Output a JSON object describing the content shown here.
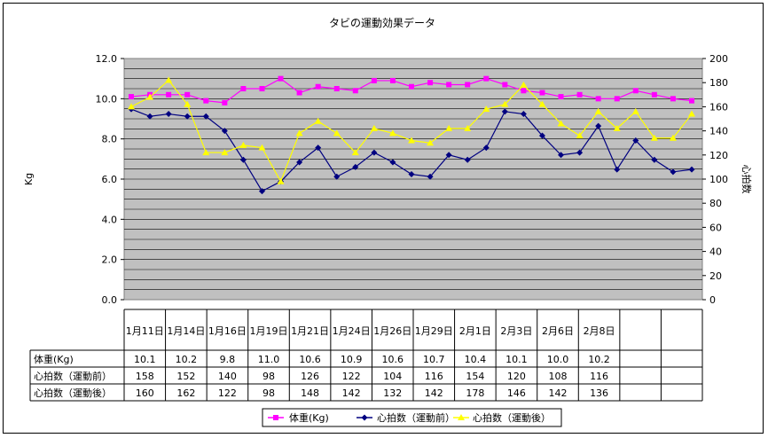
{
  "chart_data": {
    "type": "line",
    "title": "タビの運動効果データ",
    "ylabel": "Kg",
    "y2label": "心拍数",
    "ylim": [
      0,
      12
    ],
    "y2lim": [
      0,
      200
    ],
    "yticks": [
      "0.0",
      "2.0",
      "4.0",
      "6.0",
      "8.0",
      "10.0",
      "12.0"
    ],
    "y2ticks": [
      "0",
      "20",
      "40",
      "60",
      "80",
      "100",
      "120",
      "140",
      "160",
      "180",
      "200"
    ],
    "grid": true,
    "legend_position": "bottom",
    "colors": {
      "plot_bg": "#c0c0c0",
      "weight": "#ff00ff",
      "hr_before": "#000080",
      "hr_after": "#ffff00"
    },
    "series": [
      {
        "name": "体重(Kg)",
        "axis": "left",
        "marker": "square",
        "values": [
          10.1,
          10.2,
          10.2,
          10.2,
          9.9,
          9.8,
          10.5,
          10.5,
          11.0,
          10.3,
          10.6,
          10.5,
          10.4,
          10.9,
          10.9,
          10.6,
          10.8,
          10.7,
          10.7,
          11.0,
          10.7,
          10.4,
          10.3,
          10.1,
          10.2,
          10.0,
          10.0,
          10.4,
          10.2,
          10.0,
          9.9
        ]
      },
      {
        "name": "心拍数（運動前）",
        "axis": "right",
        "marker": "diamond",
        "values": [
          158,
          152,
          154,
          152,
          152,
          140,
          116,
          90,
          98,
          114,
          126,
          102,
          110,
          122,
          114,
          104,
          102,
          120,
          116,
          126,
          156,
          154,
          136,
          120,
          122,
          144,
          108,
          132,
          116,
          106,
          108
        ]
      },
      {
        "name": "心拍数（運動後）",
        "axis": "right",
        "marker": "triangle",
        "values": [
          160,
          168,
          182,
          162,
          122,
          122,
          128,
          126,
          98,
          138,
          148,
          138,
          122,
          142,
          138,
          132,
          130,
          142,
          142,
          158,
          162,
          178,
          162,
          146,
          136,
          156,
          142,
          156,
          134,
          134,
          154
        ]
      }
    ],
    "table": {
      "dates": [
        "1月11日",
        "1月14日",
        "1月16日",
        "1月19日",
        "1月21日",
        "1月24日",
        "1月26日",
        "1月29日",
        "2月1日",
        "2月3日",
        "2月6日",
        "2月8日",
        "",
        ""
      ],
      "rows": [
        {
          "label": "体重(Kg)",
          "values": [
            "10.1",
            "10.2",
            "9.8",
            "11.0",
            "10.6",
            "10.9",
            "10.6",
            "10.7",
            "10.4",
            "10.1",
            "10.0",
            "10.2",
            "",
            ""
          ]
        },
        {
          "label": "心拍数（運動前）",
          "values": [
            "158",
            "152",
            "140",
            "98",
            "126",
            "122",
            "104",
            "116",
            "154",
            "120",
            "108",
            "116",
            "",
            ""
          ]
        },
        {
          "label": "心拍数（運動後）",
          "values": [
            "160",
            "162",
            "122",
            "98",
            "148",
            "142",
            "132",
            "142",
            "178",
            "146",
            "142",
            "136",
            "",
            ""
          ]
        }
      ]
    }
  }
}
